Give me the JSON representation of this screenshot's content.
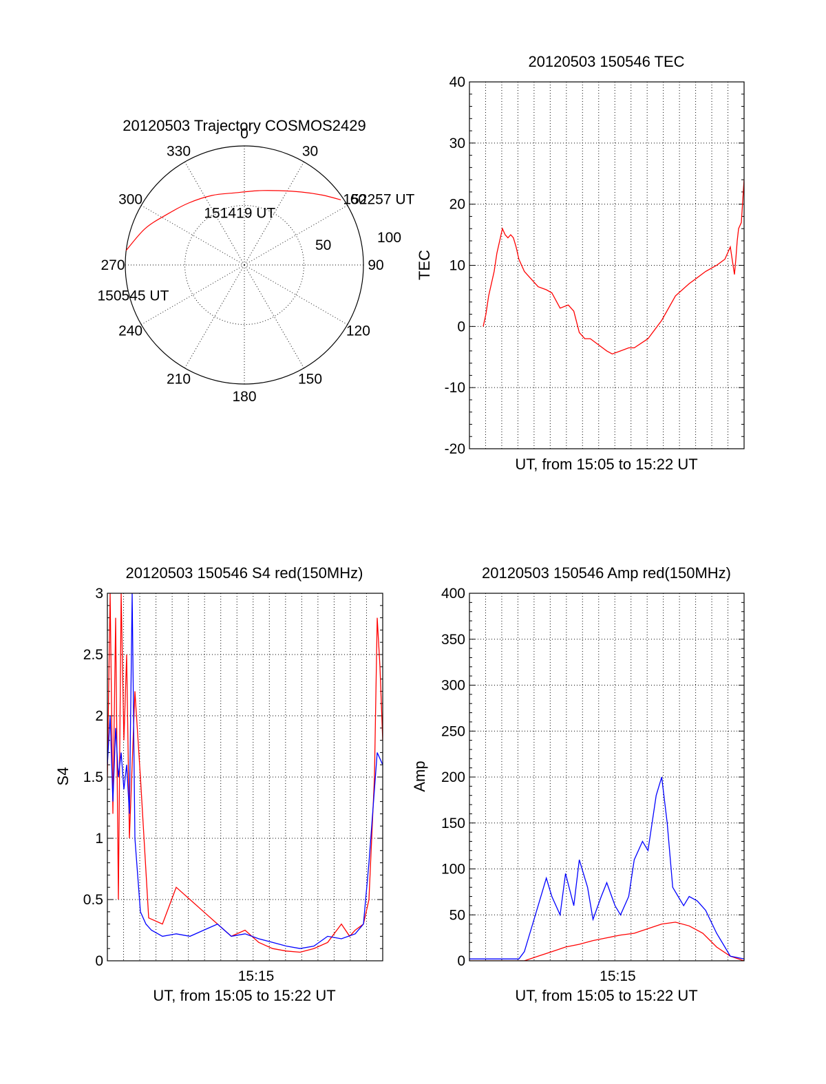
{
  "chart_data": [
    {
      "type": "polar",
      "title": "20120503 Trajectory COSMOS2429",
      "azimuth_labels": [
        "0",
        "30",
        "60",
        "90",
        "120",
        "150",
        "180",
        "210",
        "240",
        "270",
        "300",
        "330"
      ],
      "radius_labels": [
        "50",
        "100"
      ],
      "trajectory": {
        "color": "#ff0000",
        "points": [
          {
            "az": 277,
            "el": 0
          },
          {
            "az": 290,
            "el": 10
          },
          {
            "az": 303,
            "el": 20
          },
          {
            "az": 318,
            "el": 27
          },
          {
            "az": 335,
            "el": 32
          },
          {
            "az": 352,
            "el": 35
          },
          {
            "az": 10,
            "el": 33
          },
          {
            "az": 25,
            "el": 28
          },
          {
            "az": 38,
            "el": 20
          },
          {
            "az": 48,
            "el": 11
          },
          {
            "az": 56,
            "el": 2
          }
        ]
      },
      "annotations": [
        {
          "text": "150545 UT",
          "az": 255,
          "el": 3
        },
        {
          "text": "151419 UT",
          "az": 355,
          "el": 50
        },
        {
          "text": "152257 UT",
          "az": 56,
          "el": 0
        }
      ]
    },
    {
      "type": "line",
      "title": "20120503 150546 TEC",
      "xlabel": "UT, from 15:05 to 15:22 UT",
      "ylabel": "TEC",
      "xlim": [
        0,
        1
      ],
      "ylim": [
        -20,
        40
      ],
      "yticks": [
        "-20",
        "-10",
        "0",
        "10",
        "20",
        "30",
        "40"
      ],
      "grid": true,
      "series": [
        {
          "color": "#ff0000",
          "x": [
            0.05,
            0.06,
            0.07,
            0.08,
            0.09,
            0.1,
            0.11,
            0.12,
            0.13,
            0.14,
            0.15,
            0.16,
            0.17,
            0.18,
            0.2,
            0.22,
            0.25,
            0.28,
            0.3,
            0.33,
            0.36,
            0.38,
            0.4,
            0.42,
            0.44,
            0.47,
            0.5,
            0.52,
            0.55,
            0.58,
            0.6,
            0.65,
            0.7,
            0.75,
            0.8,
            0.83,
            0.86,
            0.9,
            0.93,
            0.95,
            0.96,
            0.965,
            0.97,
            0.975,
            0.98,
            0.99,
            1.0
          ],
          "y": [
            0,
            2,
            5,
            7,
            9,
            12,
            14,
            16,
            15,
            14.5,
            15,
            14.5,
            13,
            11,
            9,
            8,
            6.5,
            6,
            5.5,
            3,
            3.5,
            2.5,
            -1,
            -2,
            -2,
            -3,
            -4,
            -4.5,
            -4,
            -3.5,
            -3.5,
            -2,
            1,
            5,
            7,
            8,
            9,
            10,
            11,
            13,
            10,
            8.5,
            11,
            14,
            16,
            17,
            24
          ]
        }
      ]
    },
    {
      "type": "line",
      "title": "20120503 150546 S4 red(150MHz)",
      "xlabel": "UT, from 15:05 to 15:22 UT",
      "ylabel": "S4",
      "xlim": [
        0,
        1
      ],
      "ylim": [
        0,
        3
      ],
      "yticks": [
        "0",
        "0.5",
        "1",
        "1.5",
        "2",
        "2.5",
        "3"
      ],
      "xticks": [
        {
          "x": 0.54,
          "label": "15:15"
        }
      ],
      "grid": true,
      "series": [
        {
          "color": "#ff0000",
          "x": [
            0.0,
            0.01,
            0.02,
            0.03,
            0.04,
            0.05,
            0.06,
            0.07,
            0.08,
            0.1,
            0.12,
            0.15,
            0.2,
            0.25,
            0.3,
            0.35,
            0.4,
            0.45,
            0.5,
            0.55,
            0.6,
            0.65,
            0.7,
            0.75,
            0.8,
            0.85,
            0.88,
            0.9,
            0.93,
            0.95,
            0.97,
            0.98,
            0.99,
            1.0
          ],
          "y": [
            1.5,
            3,
            1.2,
            2.8,
            0.5,
            3,
            1.8,
            2.5,
            1.0,
            2.2,
            1.5,
            0.35,
            0.3,
            0.6,
            0.5,
            0.4,
            0.3,
            0.2,
            0.25,
            0.15,
            0.1,
            0.08,
            0.07,
            0.1,
            0.15,
            0.3,
            0.2,
            0.25,
            0.3,
            0.5,
            1.5,
            2.8,
            2.4,
            1.8
          ]
        },
        {
          "color": "#0000ff",
          "x": [
            0.0,
            0.01,
            0.02,
            0.03,
            0.04,
            0.05,
            0.06,
            0.07,
            0.08,
            0.09,
            0.1,
            0.12,
            0.14,
            0.16,
            0.2,
            0.25,
            0.3,
            0.35,
            0.4,
            0.45,
            0.5,
            0.55,
            0.6,
            0.65,
            0.7,
            0.75,
            0.8,
            0.85,
            0.9,
            0.93,
            0.95,
            0.97,
            0.98,
            1.0
          ],
          "y": [
            1.6,
            2.0,
            1.3,
            1.9,
            1.5,
            1.7,
            1.4,
            1.6,
            1.2,
            3.0,
            1.0,
            0.4,
            0.3,
            0.25,
            0.2,
            0.22,
            0.2,
            0.25,
            0.3,
            0.2,
            0.22,
            0.18,
            0.15,
            0.12,
            0.1,
            0.12,
            0.2,
            0.18,
            0.22,
            0.3,
            0.8,
            1.4,
            1.7,
            1.6
          ]
        }
      ]
    },
    {
      "type": "line",
      "title": "20120503 150546 Amp red(150MHz)",
      "xlabel": "UT, from 15:05 to 15:22 UT",
      "ylabel": "Amp",
      "xlim": [
        0,
        1
      ],
      "ylim": [
        0,
        400
      ],
      "yticks": [
        "0",
        "50",
        "100",
        "150",
        "200",
        "250",
        "300",
        "350",
        "400"
      ],
      "xticks": [
        {
          "x": 0.54,
          "label": "15:15"
        }
      ],
      "grid": true,
      "series": [
        {
          "color": "#ff0000",
          "x": [
            0.0,
            0.2,
            0.25,
            0.3,
            0.35,
            0.4,
            0.45,
            0.5,
            0.55,
            0.6,
            0.65,
            0.7,
            0.75,
            0.8,
            0.85,
            0.9,
            0.95,
            1.0
          ],
          "y": [
            0,
            0,
            5,
            10,
            15,
            18,
            22,
            25,
            28,
            30,
            35,
            40,
            42,
            38,
            30,
            15,
            5,
            0
          ]
        },
        {
          "color": "#0000ff",
          "x": [
            0.0,
            0.18,
            0.2,
            0.22,
            0.25,
            0.28,
            0.3,
            0.33,
            0.35,
            0.38,
            0.4,
            0.43,
            0.45,
            0.48,
            0.5,
            0.53,
            0.55,
            0.58,
            0.6,
            0.63,
            0.65,
            0.68,
            0.7,
            0.72,
            0.74,
            0.76,
            0.78,
            0.8,
            0.83,
            0.86,
            0.9,
            0.93,
            0.95,
            1.0
          ],
          "y": [
            2,
            2,
            10,
            30,
            60,
            90,
            70,
            50,
            95,
            60,
            110,
            80,
            45,
            70,
            85,
            60,
            50,
            70,
            110,
            130,
            120,
            180,
            200,
            150,
            80,
            70,
            60,
            70,
            65,
            55,
            30,
            15,
            5,
            2
          ]
        }
      ]
    }
  ]
}
